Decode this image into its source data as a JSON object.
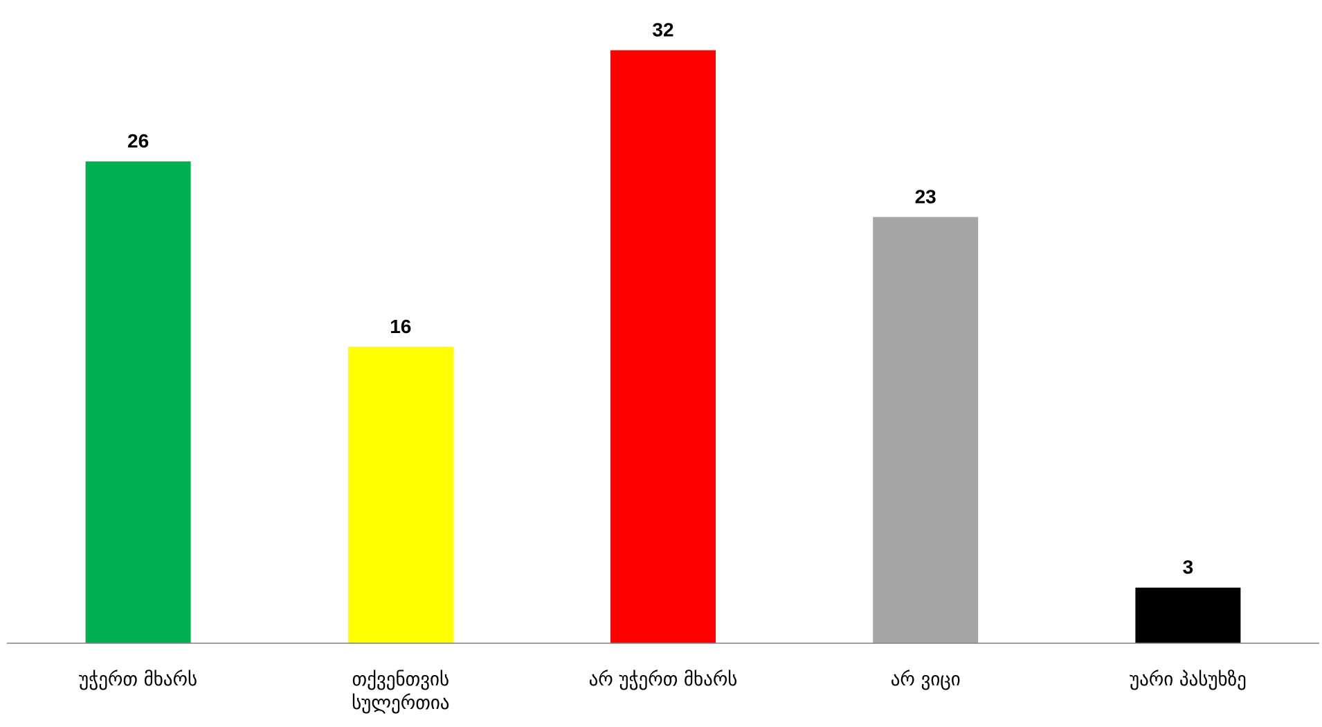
{
  "chart_data": {
    "type": "bar",
    "categories": [
      "უჭერთ  მხარს",
      "თქვენთვის\nსულერთია",
      "არ უჭერთ მხარს",
      "არ ვიცი",
      "უარი პასუხზე"
    ],
    "values": [
      26,
      16,
      32,
      23,
      3
    ],
    "colors": [
      "#00b050",
      "#ffff00",
      "#ff0000",
      "#a6a6a6",
      "#000000"
    ],
    "ylim": [
      0,
      34
    ]
  }
}
